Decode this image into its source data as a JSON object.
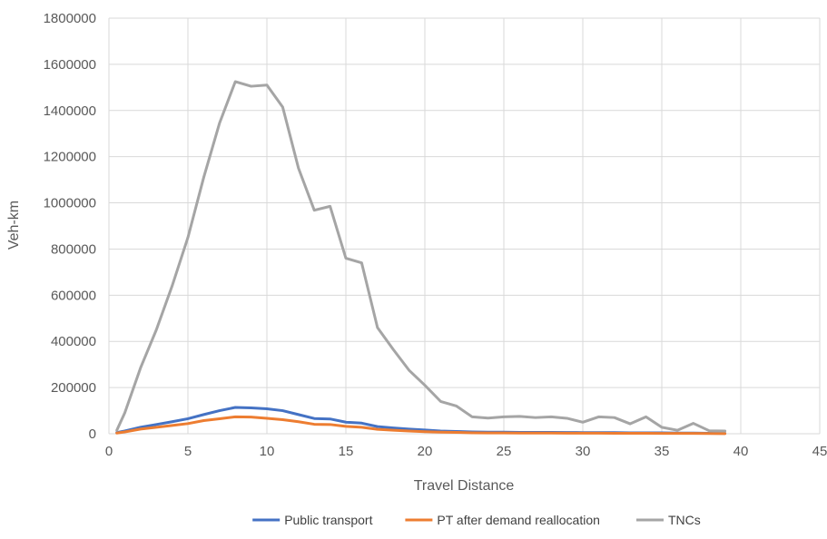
{
  "chart_data": {
    "type": "line",
    "xlabel": "Travel Distance",
    "ylabel": "Veh-km",
    "xlim": [
      0,
      45
    ],
    "ylim": [
      0,
      1800000
    ],
    "xticks": [
      0,
      5,
      10,
      15,
      20,
      25,
      30,
      35,
      40,
      45
    ],
    "yticks": [
      0,
      200000,
      400000,
      600000,
      800000,
      1000000,
      1200000,
      1400000,
      1600000,
      1800000
    ],
    "grid": true,
    "legend_position": "bottom",
    "x": [
      0.5,
      1,
      2,
      3,
      4,
      5,
      6,
      7,
      8,
      9,
      10,
      11,
      12,
      13,
      14,
      15,
      16,
      17,
      18,
      19,
      20,
      21,
      22,
      23,
      24,
      25,
      26,
      27,
      28,
      29,
      30,
      31,
      32,
      33,
      34,
      35,
      36,
      37,
      38,
      39
    ],
    "series": [
      {
        "name": "Public transport",
        "color": "#4472C4",
        "values": [
          5000,
          12000,
          28000,
          40000,
          52000,
          65000,
          83000,
          100000,
          114000,
          112000,
          108000,
          100000,
          83000,
          66000,
          64000,
          50000,
          46000,
          31000,
          25000,
          20000,
          16000,
          12000,
          10000,
          8000,
          7000,
          7000,
          6000,
          6000,
          6000,
          5500,
          5000,
          5000,
          5000,
          4000,
          4000,
          4000,
          3000,
          3000,
          2000,
          1500
        ]
      },
      {
        "name": "PT after demand reallocation",
        "color": "#ED7D31",
        "values": [
          3000,
          8000,
          20000,
          28000,
          36000,
          44000,
          57000,
          65000,
          73000,
          72000,
          67000,
          61000,
          52000,
          41000,
          40000,
          32000,
          28000,
          19000,
          15000,
          12000,
          9000,
          7000,
          6000,
          4000,
          3500,
          3500,
          3000,
          3000,
          3000,
          2500,
          2500,
          2500,
          2000,
          2000,
          2000,
          1500,
          1500,
          1500,
          1000,
          500
        ]
      },
      {
        "name": "TNCs",
        "color": "#A5A5A5",
        "values": [
          15000,
          90000,
          285000,
          450000,
          640000,
          850000,
          1110000,
          1345000,
          1525000,
          1505000,
          1510000,
          1415000,
          1150000,
          968000,
          985000,
          760000,
          740000,
          460000,
          365000,
          275000,
          210000,
          140000,
          120000,
          73000,
          68000,
          73000,
          75000,
          70000,
          73000,
          67000,
          50000,
          73000,
          70000,
          43000,
          73000,
          28000,
          15000,
          45000,
          13000,
          12000
        ]
      }
    ]
  }
}
